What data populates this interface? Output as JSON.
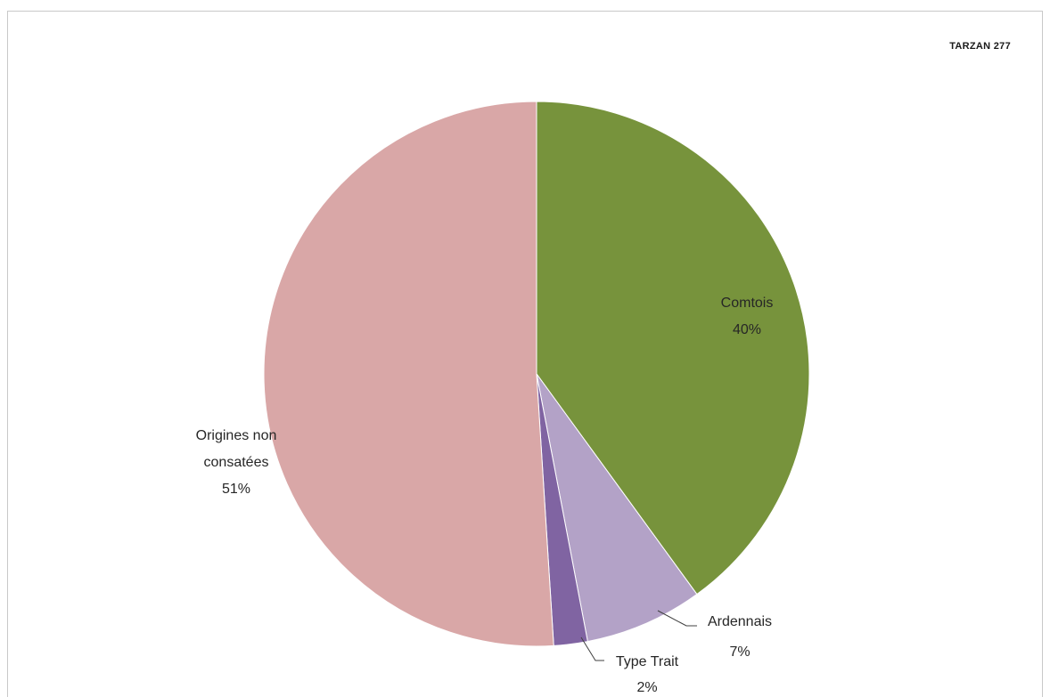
{
  "chart_data": {
    "type": "pie",
    "title": "TARZAN 277",
    "slices": [
      {
        "label": "Comtois",
        "value": 40,
        "value_label": "40%",
        "color": "#77933c"
      },
      {
        "label": "Ardennais",
        "value": 7,
        "value_label": "7%",
        "color": "#b3a2c7"
      },
      {
        "label": "Type Trait",
        "value": 2,
        "value_label": "2%",
        "color": "#8064a2"
      },
      {
        "label": "Origines non consatées",
        "value": 51,
        "value_label": "51%",
        "color": "#d9a7a7"
      }
    ],
    "start": "12 o'clock",
    "direction": "clockwise",
    "legend": "none"
  },
  "labels": {
    "comtois_name": "Comtois",
    "comtois_value": "40%",
    "ardennais_name": "Ardennais",
    "ardennais_value": "7%",
    "type_trait_name": "Type Trait",
    "type_trait_value": "2%",
    "origines_line1": "Origines non",
    "origines_line2": "consatées",
    "origines_value": "51%"
  }
}
